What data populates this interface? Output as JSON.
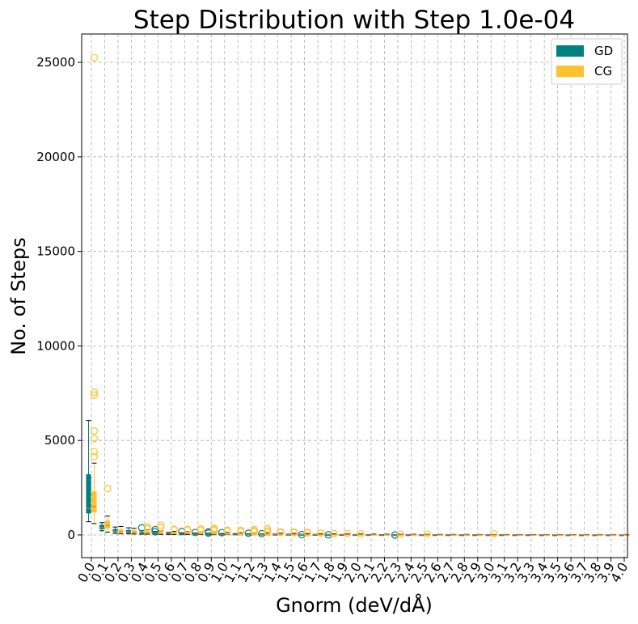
{
  "chart_data": {
    "type": "box",
    "title": "Step Distribution with Step 1.0e-04",
    "xlabel": "Gnorm (deV/dÅ)",
    "ylabel": "No. of Steps",
    "ylim": [
      -1200,
      26500
    ],
    "yticks": [
      0,
      5000,
      10000,
      15000,
      20000,
      25000
    ],
    "grid": true,
    "legend_position": "top-right",
    "categories": [
      "0.0",
      "0.1",
      "0.2",
      "0.3",
      "0.4",
      "0.5",
      "0.6",
      "0.7",
      "0.8",
      "0.9",
      "1.0",
      "1.1",
      "1.2",
      "1.3",
      "1.4",
      "1.5",
      "1.6",
      "1.7",
      "1.8",
      "1.9",
      "2.0",
      "2.1",
      "2.2",
      "2.3",
      "2.4",
      "2.5",
      "2.6",
      "2.7",
      "2.8",
      "2.9",
      "3.0",
      "3.1",
      "3.2",
      "3.3",
      "3.4",
      "3.5",
      "3.6",
      "3.7",
      "3.8",
      "3.9",
      "4.0"
    ],
    "series": [
      {
        "name": "GD",
        "color": "#00807f",
        "boxes": [
          {
            "whislo": 700,
            "q1": 1150,
            "med": 1400,
            "q3": 3200,
            "whishi": 6050,
            "fliers": []
          },
          {
            "whislo": 220,
            "q1": 320,
            "med": 400,
            "q3": 520,
            "whishi": 650,
            "fliers": []
          },
          {
            "whislo": 80,
            "q1": 150,
            "med": 200,
            "q3": 300,
            "whishi": 420,
            "fliers": []
          },
          {
            "whislo": 60,
            "q1": 110,
            "med": 160,
            "q3": 250,
            "whishi": 380,
            "fliers": []
          },
          {
            "whislo": 40,
            "q1": 70,
            "med": 100,
            "q3": 150,
            "whishi": 230,
            "fliers": [
              380
            ]
          },
          {
            "whislo": 30,
            "q1": 50,
            "med": 80,
            "q3": 120,
            "whishi": 180,
            "fliers": [
              170,
              280
            ]
          },
          {
            "whislo": 20,
            "q1": 40,
            "med": 60,
            "q3": 90,
            "whishi": 130,
            "fliers": []
          },
          {
            "whislo": 15,
            "q1": 30,
            "med": 50,
            "q3": 70,
            "whishi": 110,
            "fliers": [
              180
            ]
          },
          {
            "whislo": 15,
            "q1": 30,
            "med": 45,
            "q3": 65,
            "whishi": 100,
            "fliers": [
              130
            ]
          },
          {
            "whislo": 10,
            "q1": 25,
            "med": 40,
            "q3": 60,
            "whishi": 90,
            "fliers": [
              100,
              160
            ]
          },
          {
            "whislo": 10,
            "q1": 20,
            "med": 35,
            "q3": 55,
            "whishi": 80,
            "fliers": [
              120
            ]
          },
          {
            "whislo": 10,
            "q1": 20,
            "med": 30,
            "q3": 45,
            "whishi": 70,
            "fliers": []
          },
          {
            "whislo": 8,
            "q1": 15,
            "med": 25,
            "q3": 40,
            "whishi": 60,
            "fliers": [
              90
            ]
          },
          {
            "whislo": 8,
            "q1": 15,
            "med": 25,
            "q3": 35,
            "whishi": 55,
            "fliers": [
              70
            ]
          },
          {
            "whislo": 5,
            "q1": 12,
            "med": 20,
            "q3": 30,
            "whishi": 45,
            "fliers": []
          },
          {
            "whislo": 5,
            "q1": 10,
            "med": 18,
            "q3": 28,
            "whishi": 40,
            "fliers": []
          },
          {
            "whislo": 5,
            "q1": 10,
            "med": 15,
            "q3": 25,
            "whishi": 35,
            "fliers": [
              20
            ]
          },
          {
            "whislo": 4,
            "q1": 8,
            "med": 12,
            "q3": 20,
            "whishi": 30,
            "fliers": []
          },
          {
            "whislo": 4,
            "q1": 8,
            "med": 12,
            "q3": 18,
            "whishi": 28,
            "fliers": [
              10
            ]
          },
          {
            "whislo": 3,
            "q1": 7,
            "med": 10,
            "q3": 15,
            "whishi": 25,
            "fliers": []
          },
          {
            "whislo": 3,
            "q1": 6,
            "med": 10,
            "q3": 14,
            "whishi": 22,
            "fliers": []
          },
          {
            "whislo": 3,
            "q1": 6,
            "med": 9,
            "q3": 13,
            "whishi": 20,
            "fliers": []
          },
          {
            "whislo": 3,
            "q1": 5,
            "med": 8,
            "q3": 12,
            "whishi": 18,
            "fliers": []
          },
          {
            "whislo": 2,
            "q1": 5,
            "med": 8,
            "q3": 11,
            "whishi": 16,
            "fliers": [
              0
            ]
          },
          {
            "whislo": 2,
            "q1": 5,
            "med": 7,
            "q3": 10,
            "whishi": 15,
            "fliers": []
          },
          {
            "whislo": 2,
            "q1": 4,
            "med": 7,
            "q3": 10,
            "whishi": 14,
            "fliers": []
          },
          {
            "whislo": 2,
            "q1": 4,
            "med": 6,
            "q3": 9,
            "whishi": 13,
            "fliers": []
          },
          {
            "whislo": 2,
            "q1": 4,
            "med": 6,
            "q3": 9,
            "whishi": 12,
            "fliers": []
          },
          {
            "whislo": 2,
            "q1": 4,
            "med": 6,
            "q3": 8,
            "whishi": 12,
            "fliers": []
          },
          {
            "whislo": 2,
            "q1": 3,
            "med": 5,
            "q3": 8,
            "whishi": 11,
            "fliers": []
          },
          {
            "whislo": 2,
            "q1": 3,
            "med": 5,
            "q3": 7,
            "whishi": 10,
            "fliers": []
          },
          {
            "whislo": 2,
            "q1": 3,
            "med": 5,
            "q3": 7,
            "whishi": 10,
            "fliers": []
          },
          {
            "whislo": 1,
            "q1": 3,
            "med": 4,
            "q3": 6,
            "whishi": 9,
            "fliers": []
          },
          {
            "whislo": 1,
            "q1": 3,
            "med": 4,
            "q3": 6,
            "whishi": 9,
            "fliers": []
          },
          {
            "whislo": 1,
            "q1": 3,
            "med": 4,
            "q3": 6,
            "whishi": 8,
            "fliers": []
          },
          {
            "whislo": 1,
            "q1": 2,
            "med": 4,
            "q3": 5,
            "whishi": 8,
            "fliers": []
          },
          {
            "whislo": 1,
            "q1": 2,
            "med": 3,
            "q3": 5,
            "whishi": 7,
            "fliers": []
          },
          {
            "whislo": 1,
            "q1": 2,
            "med": 3,
            "q3": 5,
            "whishi": 7,
            "fliers": []
          },
          {
            "whislo": 1,
            "q1": 2,
            "med": 3,
            "q3": 4,
            "whishi": 6,
            "fliers": []
          },
          {
            "whislo": 1,
            "q1": 2,
            "med": 3,
            "q3": 4,
            "whishi": 6,
            "fliers": []
          },
          {
            "whislo": 1,
            "q1": 2,
            "med": 3,
            "q3": 4,
            "whishi": 5,
            "fliers": []
          }
        ]
      },
      {
        "name": "CG",
        "color": "#ffc130",
        "boxes": [
          {
            "whislo": 600,
            "q1": 1200,
            "med": 1500,
            "q3": 2300,
            "whishi": 3800,
            "fliers": [
              4150,
              4400,
              5100,
              5500,
              7400,
              7550,
              25250
            ]
          },
          {
            "whislo": 150,
            "q1": 350,
            "med": 500,
            "q3": 750,
            "whishi": 1000,
            "fliers": [
              2450
            ]
          },
          {
            "whislo": 60,
            "q1": 120,
            "med": 180,
            "q3": 280,
            "whishi": 450,
            "fliers": []
          },
          {
            "whislo": 50,
            "q1": 100,
            "med": 150,
            "q3": 230,
            "whishi": 350,
            "fliers": []
          },
          {
            "whislo": 40,
            "q1": 80,
            "med": 120,
            "q3": 180,
            "whishi": 280,
            "fliers": [
              330,
              420
            ]
          },
          {
            "whislo": 30,
            "q1": 60,
            "med": 90,
            "q3": 140,
            "whishi": 220,
            "fliers": [
              400,
              520
            ]
          },
          {
            "whislo": 25,
            "q1": 50,
            "med": 80,
            "q3": 120,
            "whishi": 190,
            "fliers": [
              270,
              300
            ]
          },
          {
            "whislo": 20,
            "q1": 45,
            "med": 70,
            "q3": 110,
            "whishi": 170,
            "fliers": [
              260,
              300
            ]
          },
          {
            "whislo": 18,
            "q1": 40,
            "med": 60,
            "q3": 100,
            "whishi": 160,
            "fliers": [
              250,
              320
            ]
          },
          {
            "whislo": 15,
            "q1": 35,
            "med": 55,
            "q3": 90,
            "whishi": 150,
            "fliers": [
              230,
              300,
              350
            ]
          },
          {
            "whislo": 15,
            "q1": 30,
            "med": 50,
            "q3": 80,
            "whishi": 130,
            "fliers": [
              200,
              250
            ]
          },
          {
            "whislo": 12,
            "q1": 28,
            "med": 45,
            "q3": 75,
            "whishi": 120,
            "fliers": [
              180,
              240
            ]
          },
          {
            "whislo": 10,
            "q1": 25,
            "med": 40,
            "q3": 70,
            "whishi": 110,
            "fliers": [
              160,
              230,
              290
            ]
          },
          {
            "whislo": 10,
            "q1": 22,
            "med": 38,
            "q3": 65,
            "whishi": 100,
            "fliers": [
              150,
              220,
              330
            ]
          },
          {
            "whislo": 8,
            "q1": 20,
            "med": 35,
            "q3": 60,
            "whishi": 90,
            "fliers": [
              130,
              160
            ]
          },
          {
            "whislo": 8,
            "q1": 18,
            "med": 32,
            "q3": 55,
            "whishi": 85,
            "fliers": [
              120,
              150
            ]
          },
          {
            "whislo": 6,
            "q1": 16,
            "med": 30,
            "q3": 50,
            "whishi": 80,
            "fliers": [
              110,
              140
            ]
          },
          {
            "whislo": 6,
            "q1": 14,
            "med": 26,
            "q3": 44,
            "whishi": 70,
            "fliers": [
              100
            ]
          },
          {
            "whislo": 5,
            "q1": 12,
            "med": 22,
            "q3": 38,
            "whishi": 60,
            "fliers": [
              80
            ]
          },
          {
            "whislo": 5,
            "q1": 10,
            "med": 20,
            "q3": 34,
            "whishi": 55,
            "fliers": [
              70
            ]
          },
          {
            "whislo": 4,
            "q1": 10,
            "med": 18,
            "q3": 30,
            "whishi": 50,
            "fliers": [
              60
            ]
          },
          {
            "whislo": 4,
            "q1": 9,
            "med": 16,
            "q3": 27,
            "whishi": 45,
            "fliers": []
          },
          {
            "whislo": 4,
            "q1": 8,
            "med": 15,
            "q3": 25,
            "whishi": 40,
            "fliers": []
          },
          {
            "whislo": 3,
            "q1": 8,
            "med": 14,
            "q3": 23,
            "whishi": 38,
            "fliers": [
              40
            ]
          },
          {
            "whislo": 3,
            "q1": 7,
            "med": 13,
            "q3": 21,
            "whishi": 35,
            "fliers": []
          },
          {
            "whislo": 3,
            "q1": 7,
            "med": 12,
            "q3": 20,
            "whishi": 33,
            "fliers": [
              50
            ]
          },
          {
            "whislo": 3,
            "q1": 6,
            "med": 11,
            "q3": 18,
            "whishi": 30,
            "fliers": []
          },
          {
            "whislo": 3,
            "q1": 6,
            "med": 10,
            "q3": 17,
            "whishi": 28,
            "fliers": []
          },
          {
            "whislo": 2,
            "q1": 6,
            "med": 10,
            "q3": 16,
            "whishi": 26,
            "fliers": []
          },
          {
            "whislo": 2,
            "q1": 5,
            "med": 9,
            "q3": 15,
            "whishi": 25,
            "fliers": []
          },
          {
            "whislo": 2,
            "q1": 5,
            "med": 9,
            "q3": 14,
            "whishi": 24,
            "fliers": [
              60
            ]
          },
          {
            "whislo": 2,
            "q1": 5,
            "med": 8,
            "q3": 13,
            "whishi": 22,
            "fliers": []
          },
          {
            "whislo": 2,
            "q1": 4,
            "med": 8,
            "q3": 12,
            "whishi": 20,
            "fliers": []
          },
          {
            "whislo": 2,
            "q1": 4,
            "med": 7,
            "q3": 12,
            "whishi": 19,
            "fliers": []
          },
          {
            "whislo": 2,
            "q1": 4,
            "med": 7,
            "q3": 11,
            "whishi": 18,
            "fliers": []
          },
          {
            "whislo": 2,
            "q1": 4,
            "med": 6,
            "q3": 10,
            "whishi": 17,
            "fliers": []
          },
          {
            "whislo": 1,
            "q1": 3,
            "med": 6,
            "q3": 10,
            "whishi": 16,
            "fliers": []
          },
          {
            "whislo": 1,
            "q1": 3,
            "med": 6,
            "q3": 9,
            "whishi": 15,
            "fliers": []
          },
          {
            "whislo": 1,
            "q1": 3,
            "med": 5,
            "q3": 9,
            "whishi": 14,
            "fliers": []
          },
          {
            "whislo": 1,
            "q1": 3,
            "med": 5,
            "q3": 8,
            "whishi": 13,
            "fliers": []
          },
          {
            "whislo": 1,
            "q1": 3,
            "med": 5,
            "q3": 8,
            "whishi": 12,
            "fliers": []
          }
        ]
      }
    ]
  }
}
